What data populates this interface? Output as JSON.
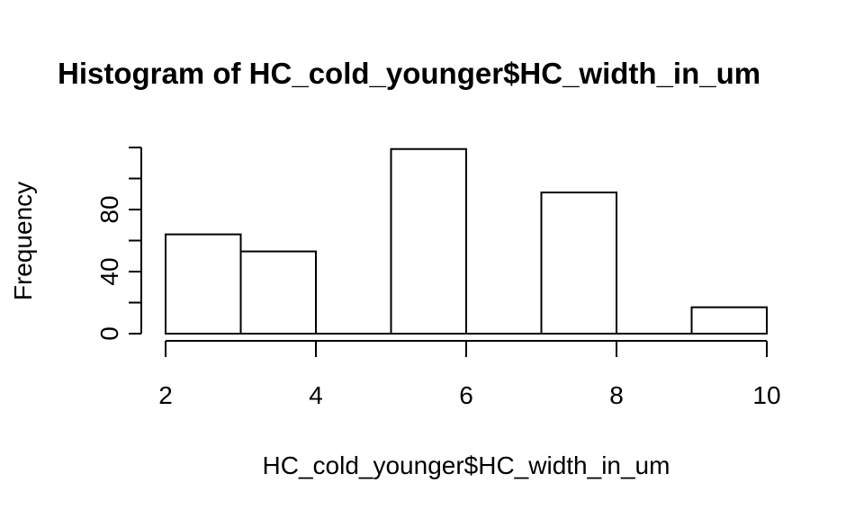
{
  "chart_data": {
    "type": "bar",
    "title": "Histogram of HC_cold_younger$HC_width_in_um",
    "xlabel": "HC_cold_younger$HC_width_in_um",
    "ylabel": "Frequency",
    "bins": [
      {
        "from": 2,
        "to": 3,
        "count": 64
      },
      {
        "from": 3,
        "to": 4,
        "count": 53
      },
      {
        "from": 4,
        "to": 5,
        "count": 0
      },
      {
        "from": 5,
        "to": 6,
        "count": 119
      },
      {
        "from": 6,
        "to": 7,
        "count": 0
      },
      {
        "from": 7,
        "to": 8,
        "count": 91
      },
      {
        "from": 8,
        "to": 9,
        "count": 0
      },
      {
        "from": 9,
        "to": 10,
        "count": 17
      }
    ],
    "xlim": [
      2,
      10
    ],
    "ylim": [
      0,
      120
    ],
    "x_ticks": [
      "2",
      "4",
      "6",
      "8",
      "10"
    ],
    "y_ticks": [
      "0",
      "40",
      "80"
    ],
    "y_minor_ticks": [
      20,
      60,
      100,
      120
    ],
    "grid": false,
    "legend": "none"
  }
}
